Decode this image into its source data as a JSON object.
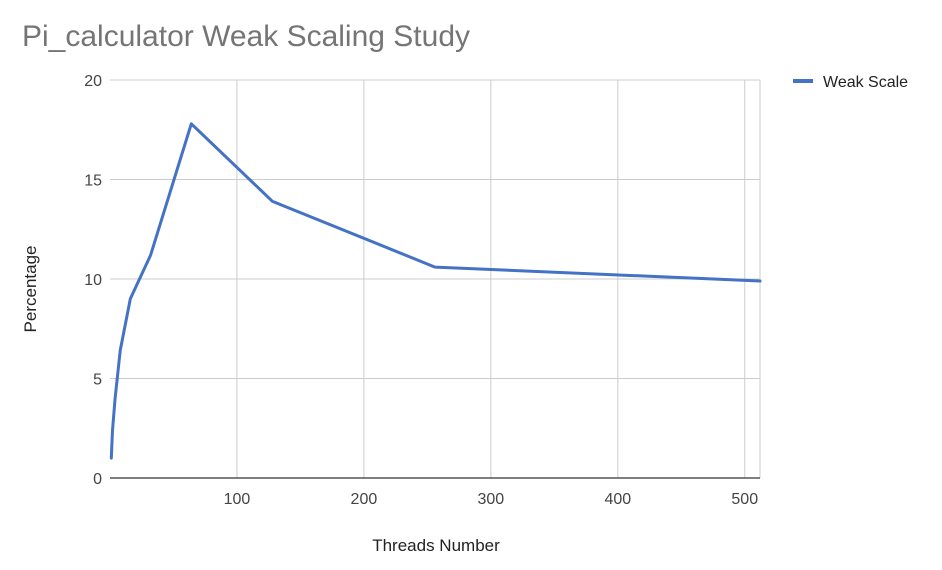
{
  "chart_data": {
    "type": "line",
    "title": "Pi_calculator Weak Scaling Study",
    "xlabel": "Threads Number",
    "ylabel": "Percentage",
    "xlim": [
      0,
      512
    ],
    "ylim": [
      0,
      20
    ],
    "x_ticks": [
      100,
      200,
      300,
      400,
      500
    ],
    "y_ticks": [
      0,
      5,
      10,
      15,
      20
    ],
    "grid": true,
    "legend_position": "top-right",
    "series": [
      {
        "name": "Weak Scale",
        "color": "#4472c4",
        "x": [
          1,
          2,
          4,
          8,
          16,
          32,
          64,
          128,
          256,
          512
        ],
        "y": [
          1.0,
          2.4,
          4.0,
          6.4,
          9.0,
          11.2,
          17.8,
          13.9,
          10.6,
          9.9
        ]
      }
    ]
  }
}
